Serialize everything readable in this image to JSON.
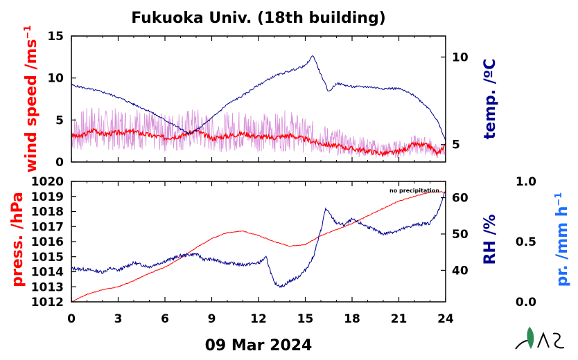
{
  "title": "Fukuoka Univ. (18th building)",
  "date_label": "09 Mar 2024",
  "note": "no precipitation",
  "colors": {
    "red": "#ff0000",
    "navy": "#00008b",
    "pink": "#d890d8",
    "blue": "#1e6cff",
    "logo_green": "#2e8b57"
  },
  "chart_data": [
    {
      "type": "line",
      "panel": "upper",
      "xlim": [
        0,
        24
      ],
      "xticks": [
        0,
        3,
        6,
        9,
        12,
        15,
        18,
        21,
        24
      ],
      "left_axis": {
        "label": "wind speed /ms",
        "label_sup": "−1",
        "ylim": [
          0,
          15
        ],
        "ticks": [
          0,
          5,
          10,
          15
        ],
        "color": "#ff0000"
      },
      "right_axis": {
        "label": "temp. /ºC",
        "ylim": [
          4.0,
          11.2
        ],
        "ticks": [
          5,
          10
        ],
        "color": "#00008b"
      },
      "series": [
        {
          "axis": "left",
          "color": "#ff0000",
          "role": "wind mean",
          "x": [
            0,
            0.5,
            1,
            1.5,
            2,
            3,
            4,
            5,
            6,
            7,
            8,
            9,
            10,
            11,
            12,
            13,
            14,
            15,
            16,
            17,
            18,
            19,
            20,
            21,
            22,
            23,
            23.5,
            24
          ],
          "y": [
            3.2,
            3.0,
            3.4,
            3.9,
            3.3,
            3.5,
            3.6,
            3.2,
            2.9,
            3.1,
            3.7,
            2.8,
            3.1,
            3.4,
            3.0,
            2.9,
            3.2,
            2.7,
            2.2,
            1.9,
            1.6,
            1.3,
            1.0,
            1.2,
            2.1,
            1.9,
            0.9,
            2.2
          ]
        },
        {
          "axis": "left",
          "color": "#d890d8",
          "role": "wind gust envelope",
          "x": [
            0,
            0.5,
            1,
            1.5,
            2,
            3,
            4,
            5,
            6,
            7,
            8,
            9,
            10,
            11,
            12,
            13,
            14,
            15,
            16,
            17,
            18,
            19,
            20,
            21,
            22,
            23,
            23.5,
            24
          ],
          "y": [
            5.5,
            6.0,
            6.5,
            7.2,
            6.2,
            6.5,
            6.8,
            6.0,
            5.8,
            6.2,
            6.5,
            5.6,
            6.0,
            6.3,
            6.0,
            5.8,
            6.3,
            5.2,
            4.6,
            4.0,
            3.4,
            2.9,
            2.4,
            2.6,
            3.2,
            3.0,
            1.9,
            2.6
          ]
        },
        {
          "axis": "right",
          "color": "#00008b",
          "role": "temperature",
          "x": [
            0,
            1,
            2,
            3,
            4,
            5,
            6,
            7,
            7.5,
            8,
            9,
            10,
            11,
            12,
            13,
            14,
            15,
            15.5,
            16,
            16.5,
            17,
            17.5,
            18,
            19,
            20,
            21,
            22,
            23,
            23.5,
            24
          ],
          "y": [
            8.4,
            8.2,
            8.0,
            7.7,
            7.3,
            6.9,
            6.4,
            5.9,
            5.6,
            5.8,
            6.5,
            7.3,
            7.8,
            8.4,
            8.9,
            9.2,
            9.5,
            10.1,
            9.0,
            8.0,
            8.5,
            8.4,
            8.3,
            8.3,
            8.2,
            8.2,
            7.8,
            7.0,
            6.3,
            5.2
          ]
        }
      ]
    },
    {
      "type": "line",
      "panel": "lower",
      "xlim": [
        0,
        24
      ],
      "xticks": [
        0,
        3,
        6,
        9,
        12,
        15,
        18,
        21,
        24
      ],
      "left_axis": {
        "label": "press. /hPa",
        "ylim": [
          1012,
          1020
        ],
        "ticks": [
          1012,
          1013,
          1014,
          1015,
          1016,
          1017,
          1018,
          1019,
          1020
        ],
        "color": "#ff0000"
      },
      "right_axis": {
        "label": "RH /%",
        "ylim": [
          31.3,
          64.5
        ],
        "ticks": [
          40,
          50,
          60
        ],
        "color": "#00008b"
      },
      "outer_axis": {
        "label": "pr. /mm h",
        "label_sup": "−1",
        "ylim": [
          0,
          1
        ],
        "ticks": [
          "0.0",
          "0.5",
          "1.0"
        ],
        "color": "#1e6cff"
      },
      "series": [
        {
          "axis": "left",
          "color": "#ff0000",
          "role": "pressure",
          "x": [
            0,
            1,
            2,
            3,
            4,
            5,
            6,
            7,
            8,
            9,
            10,
            11,
            12,
            13,
            14,
            15,
            16,
            17,
            18,
            19,
            20,
            21,
            22,
            23,
            24
          ],
          "y": [
            1012.0,
            1012.5,
            1012.8,
            1013.0,
            1013.4,
            1013.9,
            1014.3,
            1014.9,
            1015.6,
            1016.2,
            1016.6,
            1016.7,
            1016.4,
            1016.0,
            1015.7,
            1015.8,
            1016.4,
            1016.8,
            1017.2,
            1017.7,
            1018.2,
            1018.7,
            1019.0,
            1019.3,
            1019.3
          ]
        },
        {
          "axis": "right",
          "color": "#00008b",
          "role": "relative humidity",
          "x": [
            0,
            1,
            2,
            2.5,
            3,
            4,
            5,
            6,
            7,
            8,
            8.5,
            9,
            10,
            11,
            12,
            12.5,
            13,
            13.5,
            14,
            14.5,
            15,
            15.5,
            16,
            16.3,
            17,
            17.5,
            18,
            19,
            20,
            21,
            22,
            23,
            23.5,
            24
          ],
          "y": [
            40.5,
            40.2,
            39.5,
            40.5,
            40.0,
            42.0,
            41.0,
            42.5,
            44.0,
            44.5,
            43.0,
            43.0,
            42.0,
            41.5,
            42.0,
            43.5,
            36.5,
            35.5,
            37.0,
            38.0,
            40.0,
            43.5,
            51.0,
            57.0,
            53.0,
            52.5,
            54.0,
            52.0,
            50.0,
            51.0,
            52.5,
            53.0,
            56.0,
            62.0
          ]
        }
      ]
    }
  ]
}
